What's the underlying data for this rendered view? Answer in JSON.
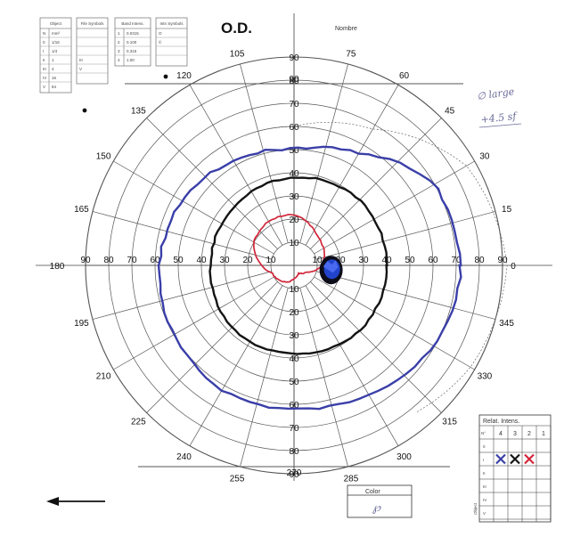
{
  "header": {
    "title": "O.D.",
    "name_label": "Nombre",
    "small_mark": "—"
  },
  "ref_tables": {
    "object": {
      "header": "Object",
      "rows": [
        [
          "N",
          "mm²"
        ],
        [
          "0",
          "1/16"
        ],
        [
          "I",
          "1/4"
        ],
        [
          "II",
          "1"
        ],
        [
          "III",
          "4"
        ],
        [
          "IV",
          "16"
        ],
        [
          "V",
          "64"
        ]
      ]
    },
    "file_symbols": {
      "header": "File Symbols",
      "rows": [
        "",
        "",
        "",
        "III",
        "V",
        ""
      ]
    },
    "intensity": {
      "n_header": "N",
      "header": "Band Intens.",
      "rows": [
        [
          "1",
          "0.0315"
        ],
        [
          "2",
          "0.100"
        ],
        [
          "3",
          "0.315"
        ],
        [
          "4",
          "1.00"
        ]
      ]
    },
    "intensity_symbols": {
      "header": "Intn Symbols",
      "rows": [
        "O",
        "©",
        "",
        ""
      ]
    }
  },
  "handwriting": {
    "line1": "∅ large",
    "line2": "+4.5 sf"
  },
  "polar_grid": {
    "meridian_labels": [
      "0",
      "15",
      "30",
      "45",
      "60",
      "75",
      "90",
      "105",
      "120",
      "135",
      "150",
      "165",
      "180",
      "195",
      "210",
      "225",
      "240",
      "255",
      "270",
      "285",
      "300",
      "315",
      "330",
      "345"
    ],
    "eccentricity_labels": [
      "10",
      "20",
      "30",
      "40",
      "50",
      "60",
      "70",
      "80",
      "90"
    ]
  },
  "isopters": [
    {
      "name": "I4",
      "color": "#3a3fa8",
      "stroke": "blue"
    },
    {
      "name": "I3",
      "color": "#141414",
      "stroke": "black"
    },
    {
      "name": "I2",
      "color": "#d2263a",
      "stroke": "red"
    }
  ],
  "blind_spot": {
    "color": "#2244cc"
  },
  "legend_grid": {
    "title": "Relat. Intens.",
    "n_label": "N°",
    "columns": [
      "4",
      "3",
      "2",
      "1"
    ],
    "object_label": "Object",
    "rows": [
      "0",
      "I",
      "II",
      "III",
      "IV",
      "V"
    ],
    "marks": [
      {
        "row": "I",
        "col": "4",
        "color": "#3a3fa8"
      },
      {
        "row": "I",
        "col": "3",
        "color": "#141414"
      },
      {
        "row": "I",
        "col": "2",
        "color": "#d2263a"
      }
    ]
  },
  "color_box": {
    "label": "Color",
    "value": "℘"
  },
  "arrow": {
    "direction": "left"
  }
}
